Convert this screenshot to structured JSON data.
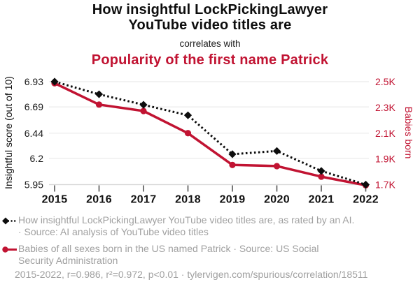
{
  "header": {
    "title_line1": "How insightful LockPickingLawyer",
    "title_line2": "YouTube video titles are",
    "connector": "correlates with",
    "subtitle": "Popularity of the first name Patrick"
  },
  "chart_data": {
    "type": "line",
    "x": [
      2015,
      2016,
      2017,
      2018,
      2019,
      2020,
      2021,
      2022
    ],
    "series": [
      {
        "name": "Insightful score",
        "axis": "left",
        "style": "dotted-diamond",
        "color": "#0d0d0d",
        "values": [
          6.93,
          6.81,
          6.71,
          6.61,
          6.24,
          6.27,
          6.08,
          5.95
        ]
      },
      {
        "name": "Babies born",
        "axis": "right",
        "style": "solid-circle",
        "color": "#c11332",
        "values": [
          2488,
          2322,
          2272,
          2100,
          1853,
          1844,
          1762,
          1695
        ]
      }
    ],
    "left_axis": {
      "label": "Insightful score (out of 10)",
      "ticks": [
        "6.93",
        "6.69",
        "6.44",
        "6.2",
        "5.95"
      ],
      "tick_values": [
        6.93,
        6.69,
        6.44,
        6.2,
        5.95
      ],
      "range": [
        6.93,
        5.95
      ]
    },
    "right_axis": {
      "label": "Babies born",
      "ticks": [
        "2.5K",
        "2.3K",
        "2.1K",
        "1.9K",
        "1.7K"
      ],
      "tick_values": [
        2500,
        2300,
        2100,
        1900,
        1700
      ],
      "range": [
        2500,
        1700
      ]
    },
    "grid": true,
    "legend_position": "bottom",
    "title": "How insightful LockPickingLawyer YouTube video titles are correlates with Popularity of the first name Patrick"
  },
  "legend": {
    "entries": [
      {
        "marker": "black-diamond-dotted",
        "lines": [
          "How insightful LockPickingLawyer YouTube video titles are, as rated by an AI.",
          "· Source: AI analysis of YouTube video titles"
        ]
      },
      {
        "marker": "red-circle-solid",
        "lines": [
          "Babies of all sexes born in the US named Patrick · Source: US Social",
          "Security Administration"
        ]
      }
    ],
    "footnote": "2015-2022, r=0.986, r²=0.972, p<0.01 · tylervigen.com/spurious/correlation/18511"
  },
  "colors": {
    "accent_red": "#c11332",
    "text_black": "#0d0d0d",
    "legend_gray": "#a0a0a0",
    "gridline": "#ebebeb",
    "axis_line": "#d6d6d6",
    "tick": "#555555"
  }
}
